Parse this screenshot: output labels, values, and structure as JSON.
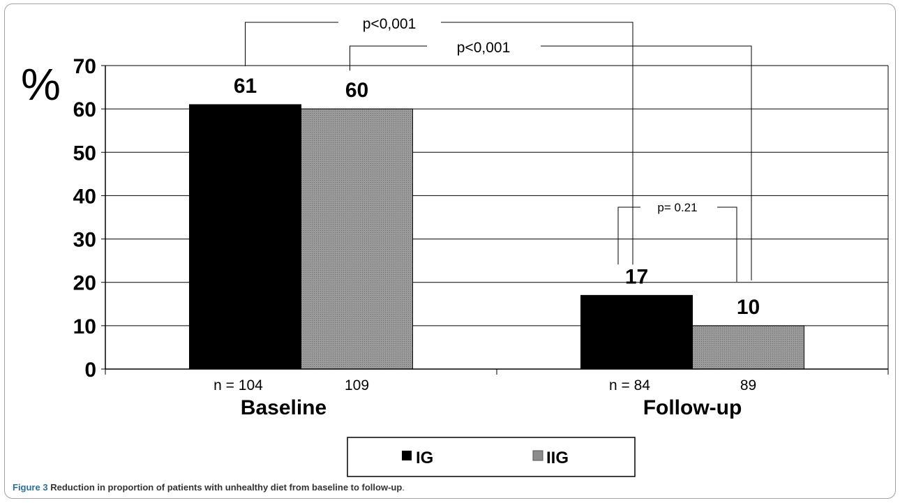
{
  "chart_data": {
    "type": "bar",
    "ylabel": "%",
    "ylim": [
      0,
      70
    ],
    "yticks": [
      0,
      10,
      20,
      30,
      40,
      50,
      60,
      70
    ],
    "categories": [
      "Baseline",
      "Follow-up"
    ],
    "series": [
      {
        "name": "IG",
        "values": [
          61,
          17
        ],
        "color": "#000000"
      },
      {
        "name": "IIG",
        "values": [
          60,
          10
        ],
        "color": "#8c8c8c"
      }
    ],
    "n_labels": [
      [
        "n = 104",
        "109"
      ],
      [
        "n = 84",
        "89"
      ]
    ],
    "annotations": [
      {
        "text": "p<0,001",
        "from": "Baseline IG",
        "to": "Follow-up IG"
      },
      {
        "text": "p<0,001",
        "from": "Baseline IIG",
        "to": "Follow-up IIG"
      },
      {
        "text": "p= 0.21",
        "from": "Follow-up IG",
        "to": "Follow-up IIG"
      }
    ],
    "legend": {
      "position": "bottom-center",
      "items": [
        "IG",
        "IIG"
      ]
    },
    "grid": "horizontal"
  },
  "caption": {
    "label": "Figure 3",
    "text": "Reduction in proportion of patients with unhealthy diet from baseline to follow-up",
    "end": "."
  }
}
